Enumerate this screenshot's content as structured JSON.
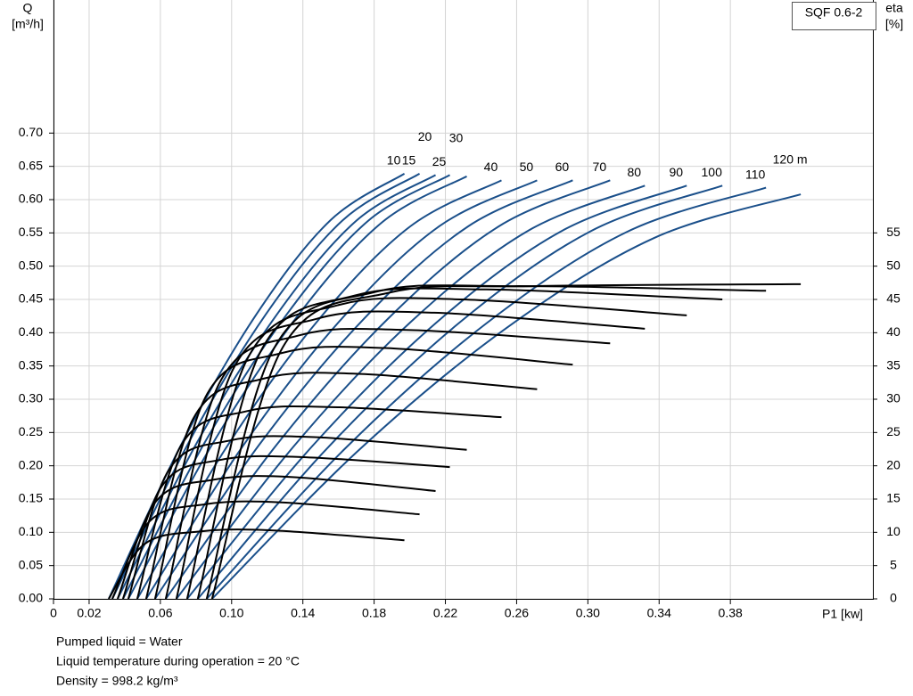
{
  "chart_data": {
    "type": "line",
    "title": "SQF 0.6-2",
    "x_label": "P1 [kw]",
    "y_label": "Q",
    "y_unit": "[m³/h]",
    "y2_label": "eta",
    "y2_unit": "[%]",
    "notes": [
      "Pumped liquid = Water",
      "Liquid temperature during operation = 20 °C",
      "Density = 998.2 kg/m³"
    ],
    "xlim": [
      0,
      0.46
    ],
    "xticks": [
      0,
      0.02,
      0.06,
      {
        "value": 0.1,
        "label": "0.10"
      },
      0.14,
      0.18,
      0.22,
      0.26,
      {
        "value": 0.3,
        "label": "0.30"
      },
      0.34,
      0.38
    ],
    "ylim": [
      0,
      0.9
    ],
    "yticks": [
      {
        "value": 0,
        "label": "0.00"
      },
      0.05,
      {
        "value": 0.1,
        "label": "0.10"
      },
      0.15,
      {
        "value": 0.2,
        "label": "0.20"
      },
      0.25,
      {
        "value": 0.3,
        "label": "0.30"
      },
      0.35,
      {
        "value": 0.4,
        "label": "0.40"
      },
      0.45,
      {
        "value": 0.5,
        "label": "0.50"
      },
      0.55,
      {
        "value": 0.6,
        "label": "0.60"
      },
      0.65,
      {
        "value": 0.7,
        "label": "0.70"
      }
    ],
    "y2lim": [
      0,
      90
    ],
    "y2ticks": [
      0,
      5,
      10,
      15,
      20,
      25,
      30,
      35,
      40,
      45,
      50,
      55
    ],
    "grid": true,
    "series": [
      {
        "name": "10",
        "color": "#1a4f8a",
        "x": [
          0.031,
          0.0725,
          0.114,
          0.1555,
          0.197
        ],
        "values": [
          0,
          0.236,
          0.428,
          0.569,
          0.639
        ]
      },
      {
        "name": "15",
        "color": "#1a4f8a",
        "x": [
          0.033,
          0.0761,
          0.1193,
          0.1624,
          0.2055
        ],
        "values": [
          0,
          0.236,
          0.428,
          0.569,
          0.639
        ]
      },
      {
        "name": "20",
        "color": "#1a4f8a",
        "x": [
          0.036,
          0.0806,
          0.1253,
          0.1699,
          0.2145
        ],
        "values": [
          0,
          0.235,
          0.427,
          0.568,
          0.637
        ]
      },
      {
        "name": "25",
        "color": "#1a4f8a",
        "x": [
          0.039,
          0.0849,
          0.1308,
          0.1766,
          0.2225
        ],
        "values": [
          0,
          0.235,
          0.427,
          0.568,
          0.637
        ]
      },
      {
        "name": "30",
        "color": "#1a4f8a",
        "x": [
          0.042,
          0.0895,
          0.137,
          0.1845,
          0.232
        ],
        "values": [
          0,
          0.234,
          0.425,
          0.566,
          0.635
        ]
      },
      {
        "name": "40",
        "color": "#1a4f8a",
        "x": [
          0.047,
          0.0981,
          0.1493,
          0.2004,
          0.2515
        ],
        "values": [
          0,
          0.232,
          0.421,
          0.56,
          0.629
        ]
      },
      {
        "name": "50",
        "color": "#1a4f8a",
        "x": [
          0.052,
          0.1069,
          0.1618,
          0.2166,
          0.2715
        ],
        "values": [
          0,
          0.232,
          0.421,
          0.56,
          0.629
        ]
      },
      {
        "name": "60",
        "color": "#1a4f8a",
        "x": [
          0.057,
          0.1156,
          0.1743,
          0.2329,
          0.2915
        ],
        "values": [
          0,
          0.232,
          0.421,
          0.56,
          0.629
        ]
      },
      {
        "name": "70",
        "color": "#1a4f8a",
        "x": [
          0.063,
          0.1254,
          0.1878,
          0.2501,
          0.3125
        ],
        "values": [
          0,
          0.232,
          0.421,
          0.56,
          0.629
        ]
      },
      {
        "name": "80",
        "color": "#1a4f8a",
        "x": [
          0.069,
          0.1348,
          0.2005,
          0.2663,
          0.332
        ],
        "values": [
          0,
          0.229,
          0.416,
          0.553,
          0.621
        ]
      },
      {
        "name": "90",
        "color": "#1a4f8a",
        "x": [
          0.075,
          0.1451,
          0.2153,
          0.2854,
          0.3555
        ],
        "values": [
          0,
          0.229,
          0.416,
          0.553,
          0.621
        ]
      },
      {
        "name": "100",
        "color": "#1a4f8a",
        "x": [
          0.081,
          0.1546,
          0.2283,
          0.3019,
          0.3755
        ],
        "values": [
          0,
          0.229,
          0.416,
          0.553,
          0.621
        ]
      },
      {
        "name": "110",
        "color": "#1a4f8a",
        "x": [
          0.086,
          0.1645,
          0.243,
          0.3215,
          0.4
        ],
        "values": [
          0,
          0.228,
          0.414,
          0.551,
          0.618
        ]
      },
      {
        "name": "120 m",
        "color": "#1a4f8a",
        "x": [
          0.089,
          0.1716,
          0.2543,
          0.3369,
          0.4195
        ],
        "values": [
          0,
          0.224,
          0.407,
          0.542,
          0.608
        ]
      },
      {
        "color": "#000000",
        "axis": "y2",
        "x": [
          0.031,
          0.0509,
          0.0808,
          0.1223,
          0.197
        ],
        "values": [
          0,
          8.2,
          10.1,
          10.3,
          8.8
        ]
      },
      {
        "color": "#000000",
        "axis": "y2",
        "x": [
          0.033,
          0.0537,
          0.0848,
          0.1279,
          0.2055
        ],
        "values": [
          0,
          11.6,
          14.2,
          14.5,
          12.7
        ]
      },
      {
        "color": "#000000",
        "axis": "y2",
        "x": [
          0.036,
          0.0574,
          0.0896,
          0.1342,
          0.2145
        ],
        "values": [
          0,
          14.6,
          17.9,
          18.3,
          16.2
        ]
      },
      {
        "color": "#000000",
        "axis": "y2",
        "x": [
          0.039,
          0.061,
          0.094,
          0.1399,
          0.2225
        ],
        "values": [
          0,
          17.0,
          20.9,
          21.3,
          19.8
        ]
      },
      {
        "color": "#000000",
        "axis": "y2",
        "x": [
          0.042,
          0.0648,
          0.099,
          0.1465,
          0.232
        ],
        "values": [
          0,
          19.4,
          23.8,
          24.3,
          22.4
        ]
      },
      {
        "color": "#000000",
        "axis": "y2",
        "x": [
          0.047,
          0.0715,
          0.1084,
          0.1595,
          0.2515
        ],
        "values": [
          0,
          23.0,
          28.2,
          28.8,
          27.3
        ]
      },
      {
        "color": "#000000",
        "axis": "y2",
        "x": [
          0.052,
          0.0783,
          0.1179,
          0.1727,
          0.2715
        ],
        "values": [
          0,
          27.0,
          33.1,
          33.8,
          31.5
        ]
      },
      {
        "color": "#000000",
        "axis": "y2",
        "x": [
          0.057,
          0.0851,
          0.1274,
          0.186,
          0.2915
        ],
        "values": [
          0,
          30.2,
          36.9,
          37.7,
          35.2
        ]
      },
      {
        "color": "#000000",
        "axis": "y2",
        "x": [
          0.063,
          0.0929,
          0.1379,
          0.2002,
          0.3125
        ],
        "values": [
          0,
          32.3,
          39.6,
          40.4,
          38.4
        ]
      },
      {
        "color": "#000000",
        "axis": "y2",
        "x": [
          0.069,
          0.1006,
          0.1479,
          0.2137,
          0.332
        ],
        "values": [
          0,
          34.4,
          42.1,
          43,
          40.6
        ]
      },
      {
        "color": "#000000",
        "axis": "y2",
        "x": [
          0.075,
          0.1087,
          0.1592,
          0.2293,
          0.3555
        ],
        "values": [
          0,
          36,
          44.1,
          45,
          42.6
        ]
      },
      {
        "color": "#000000",
        "axis": "y2",
        "x": [
          0.081,
          0.1163,
          0.1694,
          0.243,
          0.3755
        ],
        "values": [
          0,
          37.2,
          45.6,
          46.5,
          45.0
        ]
      },
      {
        "color": "#000000",
        "axis": "y2",
        "x": [
          0.086,
          0.1237,
          0.1802,
          0.2587,
          0.4
        ],
        "values": [
          0,
          37.6,
          46.1,
          47,
          46.3
        ]
      },
      {
        "color": "#000000",
        "axis": "y2",
        "x": [
          0.089,
          0.1287,
          0.1882,
          0.2708,
          0.4195
        ],
        "values": [
          0,
          37.8,
          46.0,
          47.0,
          47.3
        ]
      }
    ]
  }
}
